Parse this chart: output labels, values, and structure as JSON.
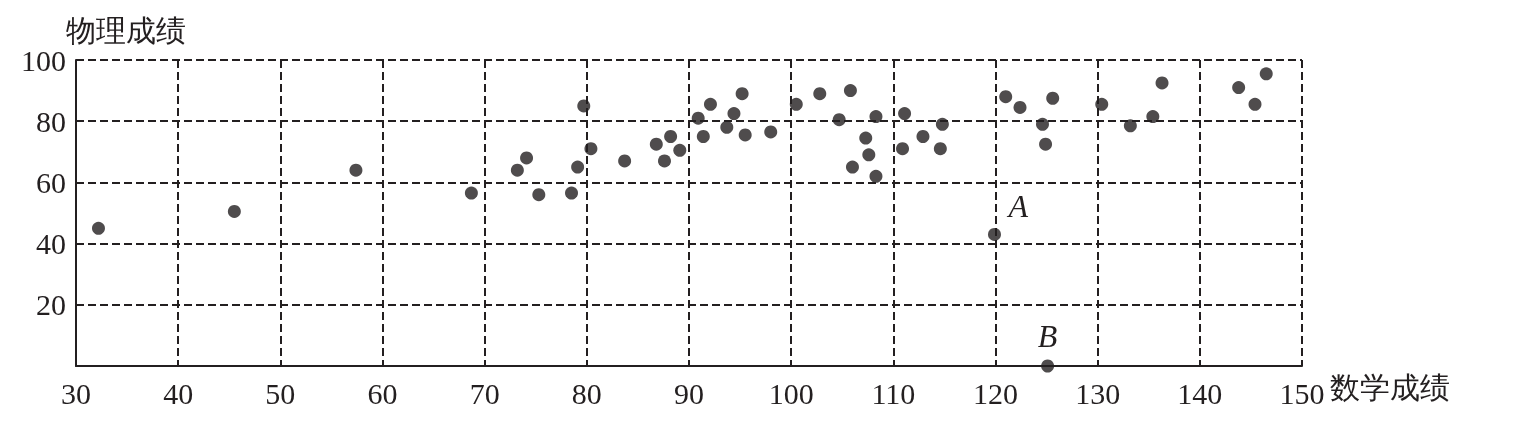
{
  "chart_data": {
    "type": "scatter",
    "xlabel": "数学成绩",
    "ylabel": "物理成绩",
    "x": [
      32.2,
      45.5,
      57.4,
      68.7,
      73.2,
      74.1,
      75.3,
      78.5,
      79.1,
      79.7,
      80.4,
      83.7,
      86.8,
      87.6,
      88.2,
      89.1,
      90.9,
      91.4,
      92.1,
      93.7,
      94.4,
      95.2,
      95.5,
      98,
      100.5,
      102.8,
      104.7,
      105.8,
      106,
      107.3,
      107.6,
      108.3,
      108.3,
      110.9,
      111.1,
      112.9,
      114.6,
      114.8,
      119.9,
      121,
      122.4,
      124.6,
      124.9,
      125.6,
      125.1,
      130.4,
      133.2,
      135.4,
      136.3,
      143.8,
      145.4,
      146.5
    ],
    "values": [
      45,
      50.5,
      64,
      56.5,
      64,
      68,
      56,
      56.5,
      65,
      85,
      71,
      67,
      72.5,
      67,
      75,
      70.5,
      81,
      75,
      85.5,
      78,
      82.5,
      89,
      75.5,
      76.5,
      85.5,
      89,
      80.5,
      90,
      65,
      74.5,
      69,
      81.5,
      62,
      71,
      82.5,
      75,
      71,
      79,
      43,
      88,
      84.5,
      79,
      72.5,
      87.5,
      0,
      85.5,
      78.5,
      81.5,
      92.5,
      91,
      85.5,
      95.5
    ],
    "color": "#231f20",
    "marker": "circle",
    "xlim": [
      30,
      150
    ],
    "xticks": [
      30,
      40,
      50,
      60,
      70,
      80,
      90,
      100,
      110,
      120,
      130,
      140,
      150
    ],
    "ylim": [
      0,
      100
    ],
    "yticks": [
      20,
      40,
      60,
      80,
      100
    ],
    "grid": true,
    "line_style": "dashed",
    "annotations": [
      {
        "text": "A",
        "x": 119.9,
        "y": 43
      },
      {
        "text": "B",
        "x": 125.1,
        "y": 0
      }
    ]
  }
}
